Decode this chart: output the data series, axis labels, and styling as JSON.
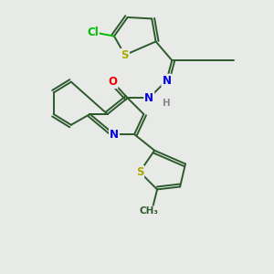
{
  "bg_color": "#e8eae8",
  "bond_color": "#2d5a2d",
  "bond_width": 1.4,
  "atom_colors": {
    "N": "#0000ee",
    "O": "#ee0000",
    "S": "#aaaa00",
    "Cl": "#00bb00",
    "H": "#888888",
    "C": "#2d5a2d"
  },
  "font_size": 8.5
}
